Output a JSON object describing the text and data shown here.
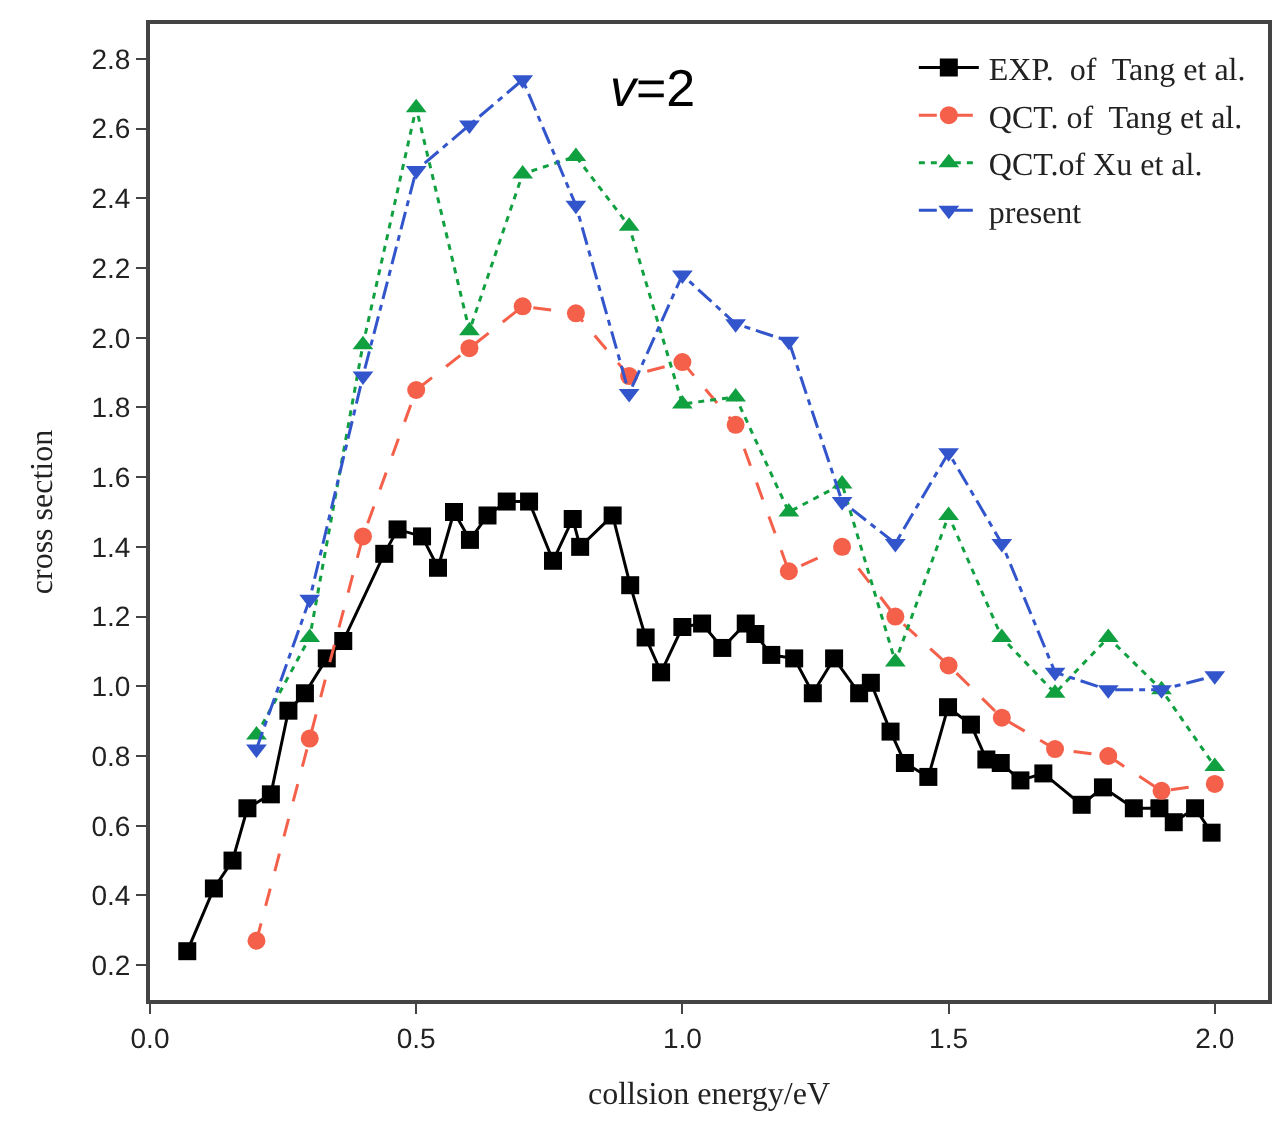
{
  "chart_data": {
    "type": "line",
    "xlabel": "collsion energy/eV",
    "ylabel": "cross section",
    "annotations": [
      "v=2"
    ],
    "xlim": [
      0,
      2.1
    ],
    "ylim": [
      0.1,
      2.9
    ],
    "xticks": [
      {
        "value": 0,
        "label": "0.0"
      },
      0.5,
      {
        "value": 1,
        "label": "1.0"
      },
      1.5,
      {
        "value": 2,
        "label": "2.0"
      }
    ],
    "yticks": [
      0.2,
      0.4,
      0.6,
      0.8,
      {
        "value": 1,
        "label": "1.0"
      },
      1.2,
      1.4,
      1.6,
      1.8,
      {
        "value": 2,
        "label": "2.0"
      },
      2.2,
      2.4,
      2.6,
      2.8
    ],
    "legend": "top right",
    "series": [
      {
        "name": "EXP.  of  Tang et al.",
        "color": "#000000",
        "marker": "square",
        "line_style": "solid",
        "x": [
          0.07,
          0.12,
          0.155,
          0.183,
          0.227,
          0.26,
          0.291,
          0.332,
          0.363,
          0.44,
          0.465,
          0.511,
          0.541,
          0.571,
          0.601,
          0.634,
          0.67,
          0.712,
          0.757,
          0.794,
          0.808,
          0.869,
          0.902,
          0.931,
          0.96,
          1.0,
          1.037,
          1.075,
          1.119,
          1.137,
          1.167,
          1.21,
          1.245,
          1.285,
          1.332,
          1.354,
          1.391,
          1.418,
          1.462,
          1.499,
          1.542,
          1.571,
          1.598,
          1.635,
          1.678,
          1.75,
          1.79,
          1.848,
          1.896,
          1.923,
          1.963,
          1.994
        ],
        "values": [
          0.24,
          0.42,
          0.5,
          0.65,
          0.69,
          0.93,
          0.98,
          1.08,
          1.13,
          1.38,
          1.45,
          1.43,
          1.34,
          1.5,
          1.42,
          1.49,
          1.53,
          1.53,
          1.36,
          1.48,
          1.4,
          1.49,
          1.29,
          1.14,
          1.04,
          1.17,
          1.18,
          1.11,
          1.18,
          1.15,
          1.09,
          1.08,
          0.98,
          1.08,
          0.98,
          1.01,
          0.87,
          0.78,
          0.74,
          0.94,
          0.89,
          0.79,
          0.78,
          0.73,
          0.75,
          0.66,
          0.71,
          0.65,
          0.65,
          0.61,
          0.65,
          0.58
        ]
      },
      {
        "name": "QCT. of  Tang et al.",
        "color": "#f4604a",
        "marker": "circle",
        "line_style": "dashed",
        "x": [
          0.2,
          0.3,
          0.4,
          0.5,
          0.6,
          0.7,
          0.8,
          0.9,
          1.0,
          1.1,
          1.2,
          1.3,
          1.4,
          1.5,
          1.6,
          1.7,
          1.8,
          1.9,
          2.0
        ],
        "values": [
          0.27,
          0.85,
          1.43,
          1.85,
          1.97,
          2.09,
          2.07,
          1.89,
          1.93,
          1.75,
          1.33,
          1.4,
          1.2,
          1.06,
          0.91,
          0.82,
          0.8,
          0.7,
          0.72
        ]
      },
      {
        "name": "QCT.of Xu et al.",
        "color": "#10a040",
        "marker": "triangle",
        "line_style": "dotted",
        "x": [
          0.2,
          0.3,
          0.4,
          0.5,
          0.6,
          0.7,
          0.8,
          0.9,
          1.0,
          1.1,
          1.2,
          1.3,
          1.4,
          1.5,
          1.6,
          1.7,
          1.8,
          1.9,
          2.0
        ],
        "values": [
          0.86,
          1.14,
          1.98,
          2.66,
          2.02,
          2.47,
          2.52,
          2.32,
          1.81,
          1.83,
          1.5,
          1.58,
          1.07,
          1.49,
          1.14,
          0.98,
          1.14,
          0.99,
          0.77
        ]
      },
      {
        "name": "present",
        "color": "#3355cc",
        "marker": "triangle-down",
        "line_style": "dashdot",
        "x": [
          0.2,
          0.3,
          0.4,
          0.5,
          0.6,
          0.7,
          0.8,
          0.9,
          1.0,
          1.1,
          1.2,
          1.3,
          1.4,
          1.5,
          1.6,
          1.7,
          1.8,
          1.9,
          2.0
        ],
        "values": [
          0.82,
          1.25,
          1.89,
          2.48,
          2.61,
          2.74,
          2.38,
          1.84,
          2.18,
          2.04,
          1.99,
          1.53,
          1.41,
          1.67,
          1.41,
          1.04,
          0.99,
          0.99,
          1.03
        ]
      }
    ]
  }
}
